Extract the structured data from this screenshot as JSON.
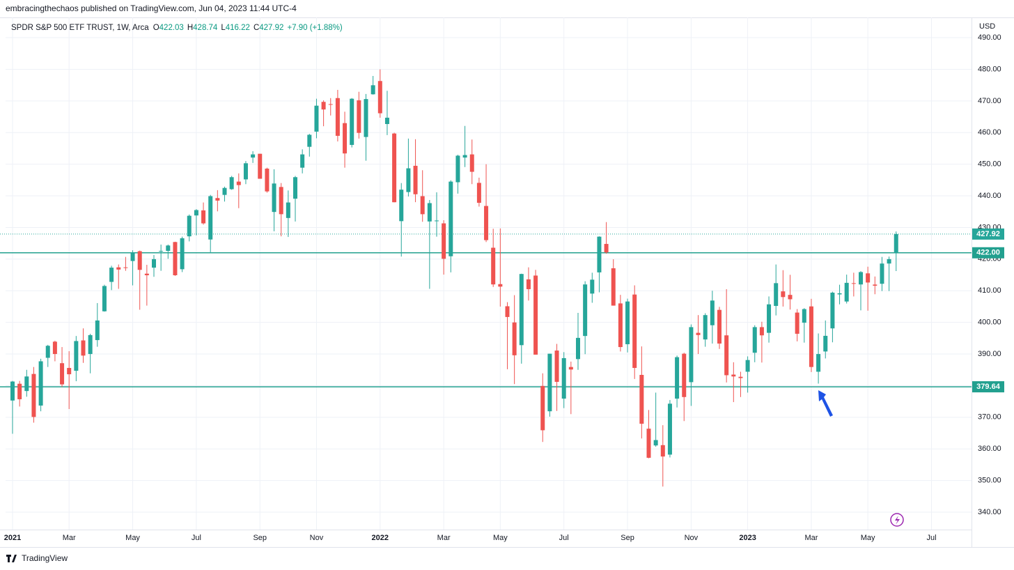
{
  "chart_data": {
    "type": "candlestick",
    "publisher_note": "embracingthechaos published on TradingView.com, Jun 04, 2023 11:44 UTC-4",
    "symbol": "SPDR S&P 500 ETF TRUST, 1W, Arca",
    "ohlc_labels": [
      "O",
      "H",
      "L",
      "C"
    ],
    "change": "+7.90 (+1.88%)",
    "currency": "USD",
    "brand": "TradingView",
    "up_color": "#26a69a",
    "down_color": "#ef5350",
    "level_color": "#22a08f",
    "grid": true,
    "categories": [
      "2021",
      null,
      null,
      null,
      null,
      null,
      null,
      null,
      "Mar",
      null,
      null,
      null,
      null,
      null,
      null,
      null,
      null,
      "May",
      null,
      null,
      null,
      null,
      null,
      null,
      null,
      null,
      "Jul",
      null,
      null,
      null,
      null,
      null,
      null,
      null,
      null,
      "Sep",
      null,
      null,
      null,
      null,
      null,
      null,
      null,
      "Nov",
      null,
      null,
      null,
      null,
      null,
      null,
      null,
      null,
      "2022",
      null,
      null,
      null,
      null,
      null,
      null,
      null,
      null,
      "Mar",
      null,
      null,
      null,
      null,
      null,
      null,
      null,
      "May",
      null,
      null,
      null,
      null,
      null,
      null,
      null,
      null,
      "Jul",
      null,
      null,
      null,
      null,
      null,
      null,
      null,
      null,
      "Sep",
      null,
      null,
      null,
      null,
      null,
      null,
      null,
      null,
      "Nov",
      null,
      null,
      null,
      null,
      null,
      null,
      null,
      "2023",
      null,
      null,
      null,
      null,
      null,
      null,
      null,
      null,
      "Mar",
      null,
      null,
      null,
      null,
      null,
      null,
      null,
      "May",
      null,
      null,
      null,
      null,
      null,
      null,
      null,
      null,
      "Jul"
    ],
    "open": [
      375.3,
      380.6,
      378.3,
      383.7,
      373.7,
      388.8,
      393.9,
      387.1,
      385.6,
      384.7,
      394.3,
      390,
      394.4,
      403.5,
      412.8,
      417.4,
      417.4,
      419.4,
      422.5,
      415.4,
      417.3,
      422.6,
      422.6,
      425.4,
      416.8,
      427.2,
      433.8,
      435.4,
      426.2,
      439.3,
      440.3,
      442.1,
      444.5,
      445.2,
      452.1,
      453.3,
      448.6,
      434.9,
      442.8,
      433,
      439.1,
      448.9,
      455.5,
      460.3,
      469.7,
      469,
      470.9,
      462.99,
      456.1,
      470.2,
      458.6,
      472.1,
      476.3,
      462.7,
      459.7,
      432,
      441.2,
      449.5,
      439.9,
      431.9,
      432,
      431.3,
      420.9,
      444.3,
      452.1,
      453.1,
      444.1,
      436.8,
      423.6,
      412.1,
      405.1,
      399.98,
      392.8,
      413.6,
      414.8,
      379.9,
      371.9,
      391.1,
      375.9,
      385.9,
      388.4,
      395.7,
      409.1,
      415.8,
      424.8,
      417.1,
      406,
      393.1,
      408.8,
      383.4,
      366.4,
      361.1,
      361.2,
      358.2,
      375.9,
      390.1,
      381.1,
      396.7,
      394.6,
      399.1,
      403.95,
      395.9,
      383.5,
      382.8,
      384.4,
      390.4,
      398.5,
      396.7,
      405.2,
      409.8,
      408.7,
      403.1,
      399.9,
      405.05,
      384.4,
      390.8,
      398.1,
      408.85,
      406.6,
      412.4,
      411.99,
      415.5,
      411.95,
      412.2,
      418.6,
      422.03,
      null,
      null,
      null,
      null,
      null
    ],
    "high": [
      381.5,
      381.5,
      385,
      385.9,
      388.5,
      392.9,
      394.2,
      392.2,
      390.9,
      395.7,
      398.1,
      396.4,
      406.1,
      411.9,
      417.9,
      418.3,
      420.7,
      422.8,
      422.7,
      418.2,
      421.3,
      424.6,
      424.6,
      425.5,
      427.1,
      434.1,
      435.8,
      437.9,
      440.3,
      441.8,
      442.9,
      446.3,
      447.1,
      451,
      454.1,
      453.3,
      448.9,
      448.4,
      444.05,
      441.7,
      446.3,
      454.7,
      459.6,
      470.7,
      470.2,
      470.9,
      473.5,
      466.6,
      470.9,
      472.9,
      472.2,
      477.9,
      479.98,
      473.2,
      459.96,
      444.04,
      458.1,
      457.9,
      448.1,
      438.7,
      441.1,
      432.3,
      444.9,
      452.98,
      462.1,
      457.8,
      445.75,
      450,
      429.6,
      429.7,
      406.4,
      408.6,
      415.4,
      417.4,
      416.6,
      383.9,
      390.1,
      393.2,
      390.6,
      387.6,
      403,
      413,
      415.7,
      427.2,
      431.7,
      419.96,
      408.7,
      407.5,
      411.7,
      392.4,
      372.3,
      377.8,
      367.5,
      375.45,
      389.5,
      390.4,
      399.35,
      402.3,
      402.9,
      410,
      404.9,
      410.5,
      387.4,
      384.4,
      389.25,
      399.1,
      400.2,
      408.2,
      418.3,
      416.5,
      415.05,
      404.2,
      404.5,
      407.45,
      396.5,
      400.6,
      409.7,
      411.9,
      415.1,
      415.7,
      416.2,
      417.6,
      414.5,
      420.7,
      420.8,
      428.74,
      null,
      null,
      null,
      null,
      null
    ],
    "low": [
      364.8,
      373.4,
      376.5,
      368.3,
      371.9,
      385.9,
      387.7,
      379.6,
      372.6,
      381.4,
      387.2,
      383.9,
      392.3,
      403.4,
      410.2,
      410.6,
      416.3,
      411.7,
      404,
      405.3,
      414.4,
      416.3,
      420.1,
      414.7,
      415.9,
      425.6,
      427.5,
      430.9,
      421.97,
      435.1,
      438.2,
      441.9,
      436.1,
      443.7,
      450.4,
      445.4,
      441,
      428.8,
      427.2,
      427,
      431.9,
      447.1,
      452.4,
      458.2,
      462,
      465.4,
      457.2,
      448.9,
      455.3,
      458.1,
      451.1,
      472,
      464.7,
      459.2,
      437.95,
      420.8,
      439.8,
      438,
      431.8,
      410.6,
      427.1,
      415.1,
      415.8,
      440.7,
      449.1,
      443.7,
      436.6,
      425.4,
      411.2,
      405,
      385.2,
      380.5,
      386.96,
      406.9,
      389.8,
      362.2,
      370.2,
      372,
      372.9,
      371,
      385,
      389.95,
      406.2,
      409.5,
      421.7,
      405.3,
      390.8,
      390.5,
      382.1,
      363.3,
      357.04,
      360.7,
      348.1,
      357.3,
      373.1,
      368.8,
      373.6,
      390,
      392.3,
      393.3,
      391.6,
      381,
      374.8,
      376.4,
      377.8,
      387.4,
      387.3,
      393.6,
      402.2,
      405,
      404.05,
      394,
      393.6,
      384.3,
      380.65,
      388.6,
      393.7,
      405.7,
      405.97,
      408.2,
      403.8,
      403.7,
      408.9,
      409.9,
      409.9,
      416.22,
      null,
      null,
      null,
      null,
      null
    ],
    "close": [
      381.3,
      375.7,
      382.9,
      370.1,
      387.7,
      392.6,
      390,
      380.4,
      383.6,
      394.1,
      389.5,
      395.98,
      400.6,
      411.5,
      417.3,
      416.7,
      417.3,
      422.1,
      416.6,
      414.9,
      420,
      422.6,
      424.3,
      414.9,
      426.6,
      433.7,
      435.5,
      431.3,
      439.9,
      438.5,
      442.5,
      445.9,
      443.4,
      450.3,
      453.1,
      445.4,
      441.4,
      443.9,
      434.2,
      437.9,
      445.9,
      453.1,
      459.3,
      468.5,
      467.3,
      468.9,
      458.97,
      453.4,
      470.7,
      459.9,
      470.6,
      474.96,
      466.1,
      464.7,
      437.98,
      441.95,
      448.7,
      440.5,
      434.2,
      437.7,
      432.2,
      420.1,
      444.5,
      452.7,
      452.9,
      447.6,
      437.8,
      426,
      412,
      411.3,
      401.7,
      389.6,
      415.3,
      410.5,
      389.8,
      365.9,
      390.1,
      381.2,
      388.7,
      385.1,
      395.1,
      411.99,
      413.5,
      427.1,
      422.1,
      405.3,
      392.2,
      406.6,
      385.6,
      367.95,
      357.2,
      362.8,
      357.6,
      374.3,
      389,
      376.4,
      398.5,
      396,
      402.3,
      406.9,
      393.3,
      383.3,
      382.9,
      382.4,
      388.1,
      398.5,
      395.9,
      405.7,
      412.4,
      408,
      407.3,
      396.4,
      404.2,
      385.9,
      389.99,
      395.75,
      409.4,
      409.2,
      412.5,
      412.2,
      415.9,
      412.6,
      411.6,
      418.6,
      420,
      427.92,
      null,
      null,
      null,
      null,
      null
    ],
    "levels": [
      {
        "value": 422,
        "label": "422.00"
      },
      {
        "value": 379.64,
        "label": "379.64"
      }
    ],
    "ylim": [
      334.5,
      496.4
    ],
    "yticks": [
      {
        "value": 340,
        "label": "340.00"
      },
      {
        "value": 350,
        "label": "350.00"
      },
      {
        "value": 360,
        "label": "360.00"
      },
      {
        "value": 370,
        "label": "370.00"
      },
      {
        "value": 380,
        "label": "380.00"
      },
      {
        "value": 390,
        "label": "390.00"
      },
      {
        "value": 400,
        "label": "400.00"
      },
      {
        "value": 410,
        "label": "410.00"
      },
      {
        "value": 420,
        "label": "420.00"
      },
      {
        "value": 430,
        "label": "430.00"
      },
      {
        "value": 440,
        "label": "440.00"
      },
      {
        "value": 450,
        "label": "450.00"
      },
      {
        "value": 460,
        "label": "460.00"
      },
      {
        "value": 470,
        "label": "470.00"
      },
      {
        "value": 480,
        "label": "480.00"
      },
      {
        "value": 490,
        "label": "490.00"
      }
    ]
  }
}
